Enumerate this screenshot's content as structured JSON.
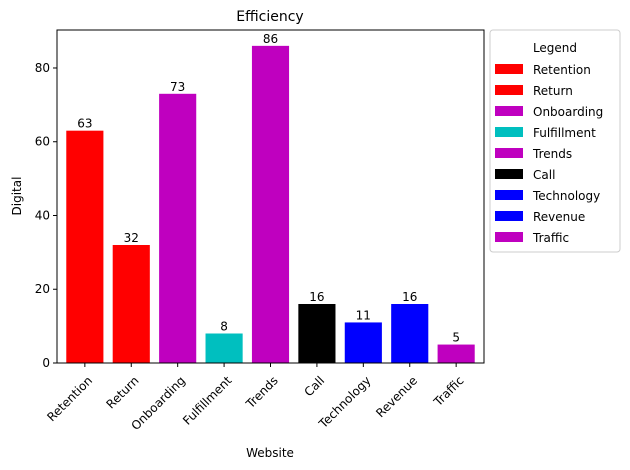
{
  "chart_data": {
    "type": "bar",
    "title": "Efficiency",
    "xlabel": "Website",
    "ylabel": "Digital",
    "categories": [
      "Retention",
      "Return",
      "Onboarding",
      "Fulfillment",
      "Trends",
      "Call",
      "Technology",
      "Revenue",
      "Traffic"
    ],
    "values": [
      63,
      32,
      73,
      8,
      86,
      16,
      11,
      16,
      5
    ],
    "colors": [
      "#ff0000",
      "#ff0000",
      "#bf00bf",
      "#00bfbf",
      "#bf00bf",
      "#000000",
      "#0000ff",
      "#0000ff",
      "#bf00bf"
    ],
    "ylim": [
      0,
      90.3
    ],
    "yticks": [
      0,
      20,
      40,
      60,
      80
    ],
    "grid": false,
    "legend": {
      "title": "Legend",
      "placement": "outside-right-top",
      "entries": [
        {
          "label": "Retention",
          "color": "#ff0000"
        },
        {
          "label": "Return",
          "color": "#ff0000"
        },
        {
          "label": "Onboarding",
          "color": "#bf00bf"
        },
        {
          "label": "Fulfillment",
          "color": "#00bfbf"
        },
        {
          "label": "Trends",
          "color": "#bf00bf"
        },
        {
          "label": "Call",
          "color": "#000000"
        },
        {
          "label": "Technology",
          "color": "#0000ff"
        },
        {
          "label": "Revenue",
          "color": "#0000ff"
        },
        {
          "label": "Traffic",
          "color": "#bf00bf"
        }
      ]
    }
  }
}
